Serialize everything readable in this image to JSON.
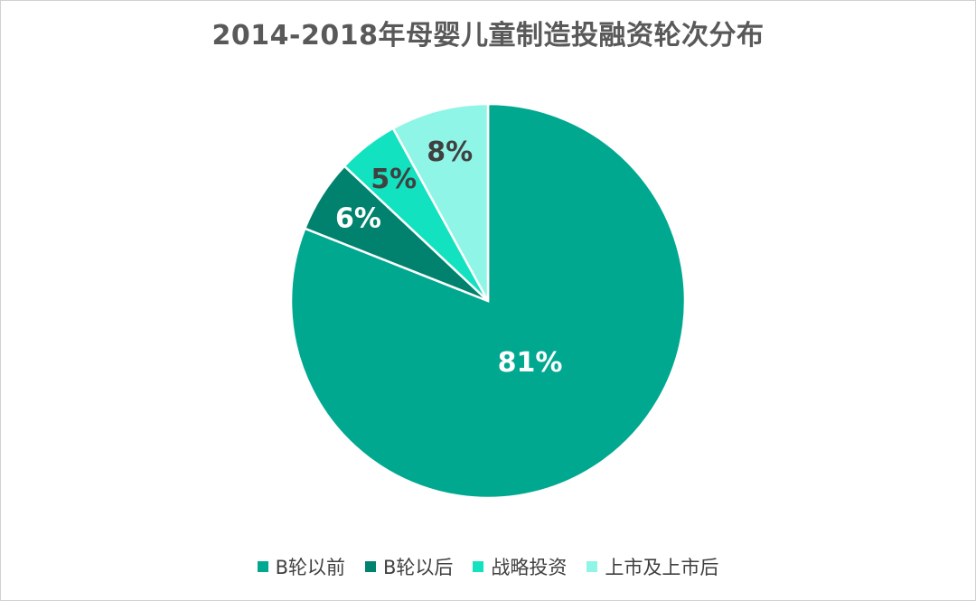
{
  "title": "2014-2018年母婴儿童制造投融资轮次分布",
  "chart_data": {
    "type": "pie",
    "title": "2014-2018年母婴儿童制造投融资轮次分布",
    "categories": [
      "B轮以前",
      "B轮以后",
      "战略投资",
      "上市及上市后"
    ],
    "values": [
      81,
      6,
      5,
      8
    ],
    "labels": [
      "81%",
      "6%",
      "5%",
      "8%"
    ],
    "colors": [
      "#00A890",
      "#00826E",
      "#12E2C0",
      "#8FF5E6"
    ],
    "label_colors": [
      "#ffffff",
      "#ffffff",
      "#404040",
      "#404040"
    ],
    "start_angle_deg": 0,
    "direction": "clockwise",
    "legend_position": "bottom"
  }
}
